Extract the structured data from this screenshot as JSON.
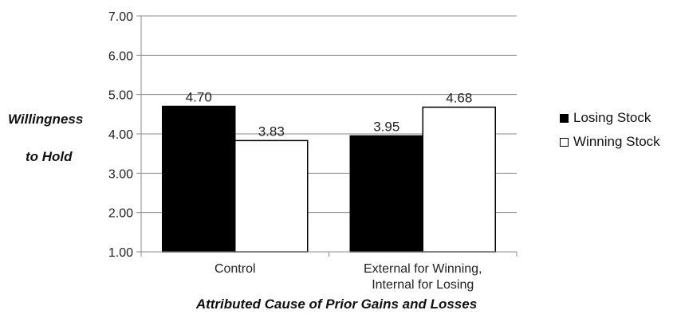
{
  "chart_data": {
    "type": "bar",
    "title": "",
    "ylabel_lines": [
      "Willingness",
      "to Hold"
    ],
    "xlabel": "Attributed Cause of Prior Gains and Losses",
    "ylim": [
      1.0,
      7.0
    ],
    "yticks": [
      "1.00",
      "2.00",
      "3.00",
      "4.00",
      "5.00",
      "6.00",
      "7.00"
    ],
    "grid": true,
    "legend_position": "right",
    "categories": [
      [
        "Control"
      ],
      [
        "External for Winning,",
        "Internal for Losing"
      ]
    ],
    "series": [
      {
        "name": "Losing Stock",
        "color": "#000000",
        "values": [
          4.7,
          3.95
        ],
        "labels": [
          "4.70",
          "3.95"
        ]
      },
      {
        "name": "Winning Stock",
        "color": "#ffffff",
        "values": [
          3.83,
          4.68
        ],
        "labels": [
          "3.83",
          "4.68"
        ]
      }
    ]
  }
}
